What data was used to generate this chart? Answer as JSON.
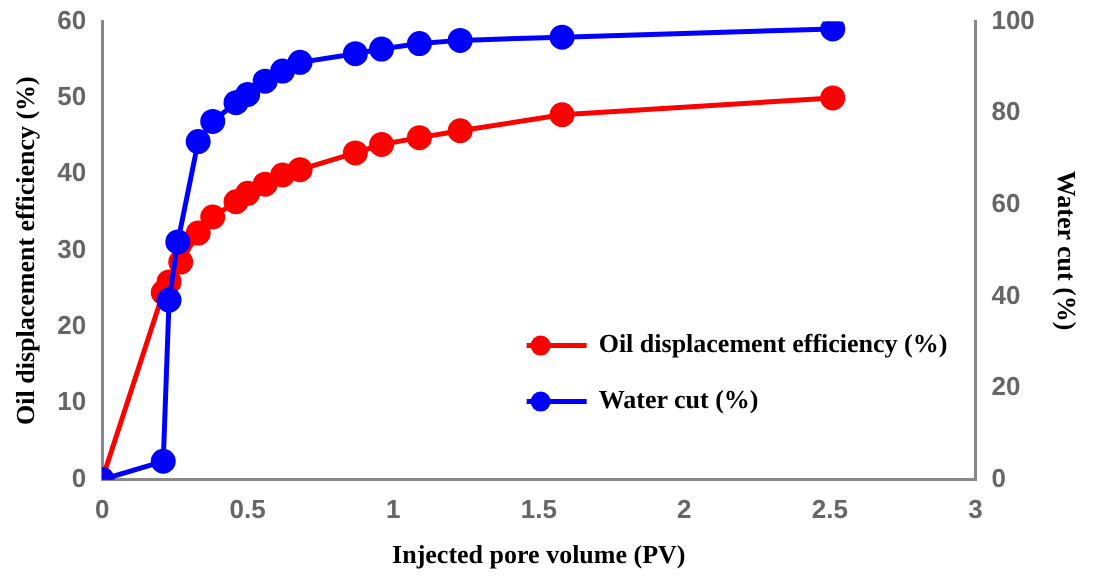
{
  "chart_data": {
    "type": "line",
    "xlabel": "Injected pore volume (PV)",
    "ylabel": "Oil displacement efficiency (%)",
    "y2label": "Water cut (%)",
    "xlim": [
      0,
      3
    ],
    "xticks": [
      0,
      0.5,
      1,
      1.5,
      2,
      2.5,
      3
    ],
    "ylim": [
      0,
      60
    ],
    "yticks": [
      0,
      10,
      20,
      30,
      40,
      50,
      60
    ],
    "y2lim": [
      0,
      100
    ],
    "y2ticks": [
      0,
      20,
      40,
      60,
      80,
      100
    ],
    "grid": false,
    "legend": "bottom right",
    "marker": "circle",
    "line_style": "solid",
    "series": [
      {
        "name": "Oil displacement efficiency (%)",
        "color": "#ff0000",
        "x": [
          0,
          0.21,
          0.23,
          0.27,
          0.33,
          0.38,
          0.46,
          0.5,
          0.56,
          0.62,
          0.68,
          0.87,
          0.96,
          1.09,
          1.23,
          1.58,
          2.51
        ],
        "values": [
          0,
          24.5,
          25.9,
          28.5,
          32.3,
          34.4,
          36.4,
          37.5,
          38.7,
          39.9,
          40.6,
          42.8,
          43.9,
          44.8,
          45.7,
          47.8,
          50.0
        ]
      },
      {
        "name": "Water cut (%)",
        "color": "#0000ff",
        "axis": "y2",
        "x": [
          0,
          0.21,
          0.23,
          0.26,
          0.33,
          0.38,
          0.46,
          0.5,
          0.56,
          0.62,
          0.68,
          0.87,
          0.96,
          1.09,
          1.23,
          1.58,
          2.51
        ],
        "values": [
          0,
          4,
          39.2,
          51.9,
          73.8,
          78.2,
          82.3,
          84.1,
          87.0,
          89.2,
          91.1,
          93.0,
          94.0,
          95.2,
          95.9,
          96.6,
          98.4
        ]
      }
    ]
  }
}
